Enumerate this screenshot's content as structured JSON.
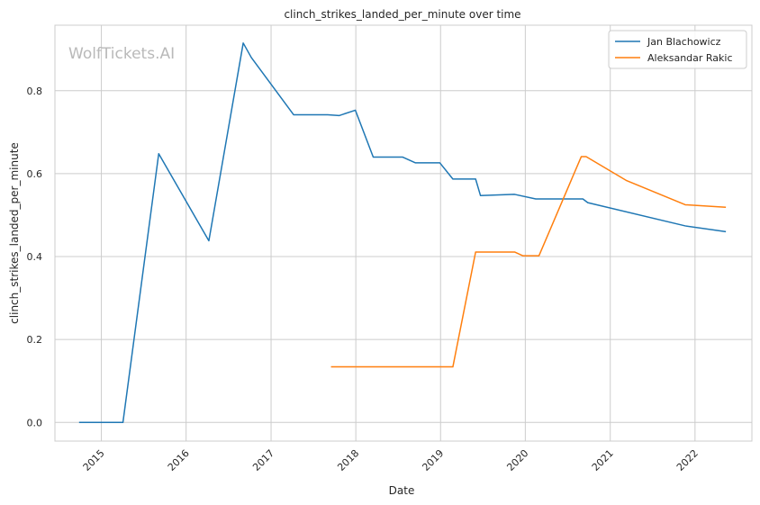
{
  "chart_data": {
    "type": "line",
    "title": "clinch_strikes_landed_per_minute over time",
    "xlabel": "Date",
    "ylabel": "clinch_strikes_landed_per_minute",
    "watermark": "WolfTickets.AI",
    "x_ticks": [
      "2015",
      "2016",
      "2017",
      "2018",
      "2019",
      "2020",
      "2021",
      "2022"
    ],
    "y_ticks": [
      "0.0",
      "0.2",
      "0.4",
      "0.6",
      "0.8"
    ],
    "xlim": [
      "2014-06-15",
      "2022-09-03"
    ],
    "ylim": [
      -0.045,
      0.958
    ],
    "grid": true,
    "legend_position": "top-right",
    "series": [
      {
        "name": "Jan Blachowicz",
        "color": "#1f77b4",
        "points": [
          [
            "2014-09-27",
            0.0
          ],
          [
            "2015-04-04",
            0.0
          ],
          [
            "2015-09-05",
            0.648
          ],
          [
            "2016-04-08",
            0.438
          ],
          [
            "2016-09-03",
            0.915
          ],
          [
            "2016-10-08",
            0.88
          ],
          [
            "2017-04-08",
            0.742
          ],
          [
            "2017-09-02",
            0.742
          ],
          [
            "2017-10-21",
            0.74
          ],
          [
            "2017-12-30",
            0.753
          ],
          [
            "2018-03-17",
            0.64
          ],
          [
            "2018-07-21",
            0.64
          ],
          [
            "2018-09-15",
            0.626
          ],
          [
            "2018-12-29",
            0.626
          ],
          [
            "2019-02-23",
            0.587
          ],
          [
            "2019-06-01",
            0.587
          ],
          [
            "2019-06-22",
            0.547
          ],
          [
            "2019-11-16",
            0.55
          ],
          [
            "2020-02-15",
            0.539
          ],
          [
            "2020-09-05",
            0.539
          ],
          [
            "2020-09-26",
            0.53
          ],
          [
            "2021-11-20",
            0.474
          ],
          [
            "2022-05-14",
            0.46
          ]
        ]
      },
      {
        "name": "Aleksandar Rakic",
        "color": "#ff7f0e",
        "points": [
          [
            "2017-09-16",
            0.134
          ],
          [
            "2018-07-21",
            0.134
          ],
          [
            "2019-02-23",
            0.134
          ],
          [
            "2019-06-01",
            0.411
          ],
          [
            "2019-11-16",
            0.411
          ],
          [
            "2019-12-21",
            0.402
          ],
          [
            "2020-02-29",
            0.402
          ],
          [
            "2020-08-29",
            0.641
          ],
          [
            "2020-09-19",
            0.641
          ],
          [
            "2021-03-13",
            0.583
          ],
          [
            "2021-11-20",
            0.525
          ],
          [
            "2022-05-14",
            0.519
          ]
        ]
      }
    ]
  }
}
